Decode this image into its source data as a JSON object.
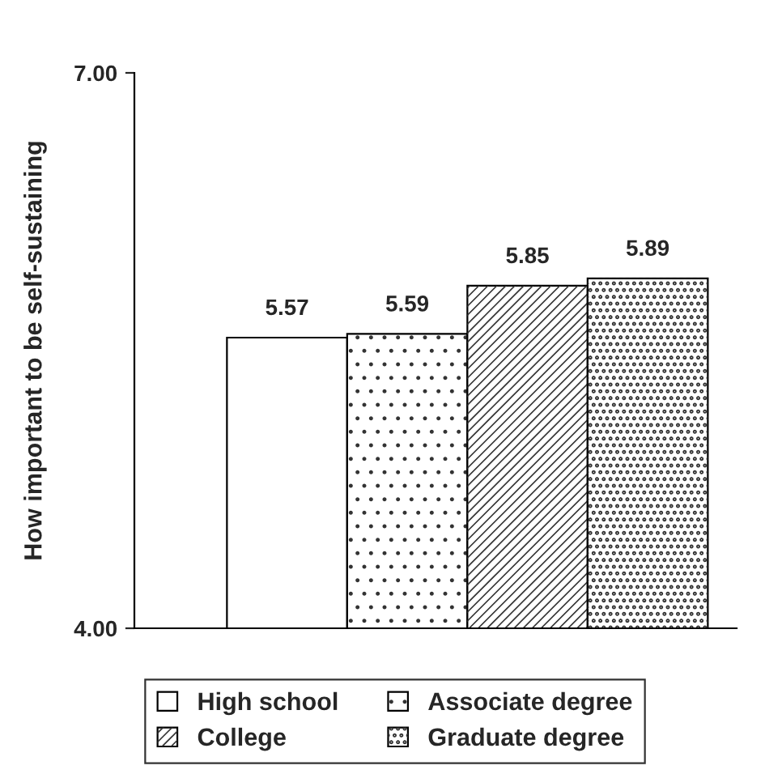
{
  "chart_data": {
    "type": "bar",
    "ylabel": "How important to be self-sustaining",
    "categories": [
      null
    ],
    "series": [
      {
        "name": "High school",
        "color": "#ffffff",
        "values": [
          5.57
        ]
      },
      {
        "name": "Associate degree",
        "color": "#ffffff",
        "values": [
          5.59
        ]
      },
      {
        "name": "College",
        "color": "#ffffff",
        "values": [
          5.85
        ]
      },
      {
        "name": "Graduate degree",
        "color": "#ffffff",
        "values": [
          5.89
        ]
      }
    ],
    "ylim": [
      4,
      7
    ],
    "yticks": [
      {
        "value": 4,
        "label": "4.00"
      },
      {
        "value": 7,
        "label": "7.00"
      }
    ],
    "data_labels": true,
    "legend": "bottom",
    "grid": false
  }
}
